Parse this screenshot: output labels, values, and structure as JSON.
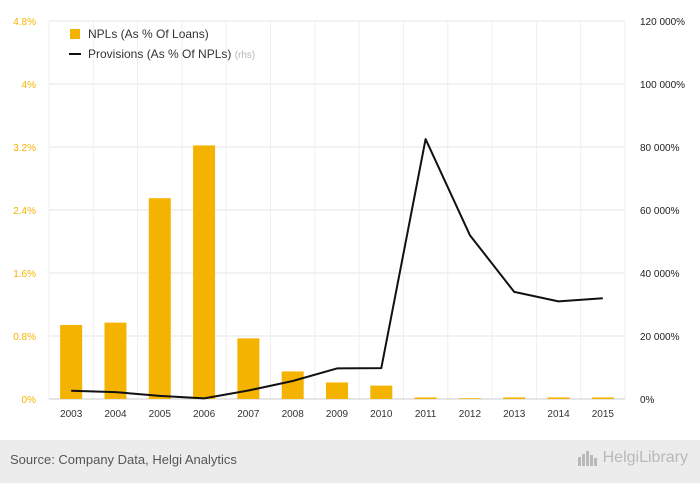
{
  "chart_data": {
    "type": "bar",
    "categories": [
      "2003",
      "2004",
      "2005",
      "2006",
      "2007",
      "2008",
      "2009",
      "2010",
      "2011",
      "2012",
      "2013",
      "2014",
      "2015"
    ],
    "series": [
      {
        "name": "NPLs (As % Of Loans)",
        "kind": "bar",
        "axis": "left",
        "color": "#f5b301",
        "values": [
          0.94,
          0.97,
          2.55,
          3.22,
          0.77,
          0.35,
          0.21,
          0.17,
          0.02,
          0.01,
          0.02,
          0.02,
          0.02
        ]
      },
      {
        "name": "Provisions (As % Of NPLs)",
        "name_suffix": "(rhs)",
        "kind": "line",
        "axis": "right",
        "color": "#111111",
        "values": [
          2600,
          2200,
          1000,
          200,
          2700,
          5700,
          9700,
          9800,
          82500,
          52000,
          34000,
          31000,
          32000
        ]
      }
    ],
    "y_left": {
      "range": [
        0,
        4.8
      ],
      "ticks": [
        "0%",
        "0.8%",
        "1.6%",
        "2.4%",
        "3.2%",
        "4%",
        "4.8%"
      ],
      "color": "#f5b301"
    },
    "y_right": {
      "range": [
        0,
        120000
      ],
      "ticks": [
        "0%",
        "20 000%",
        "40 000%",
        "60 000%",
        "80 000%",
        "100 000%",
        "120 000%"
      ]
    },
    "grid": true,
    "legend": "top-left"
  },
  "footer": {
    "source": "Source: Company Data, Helgi Analytics",
    "brand": "HelgiLibrary"
  }
}
